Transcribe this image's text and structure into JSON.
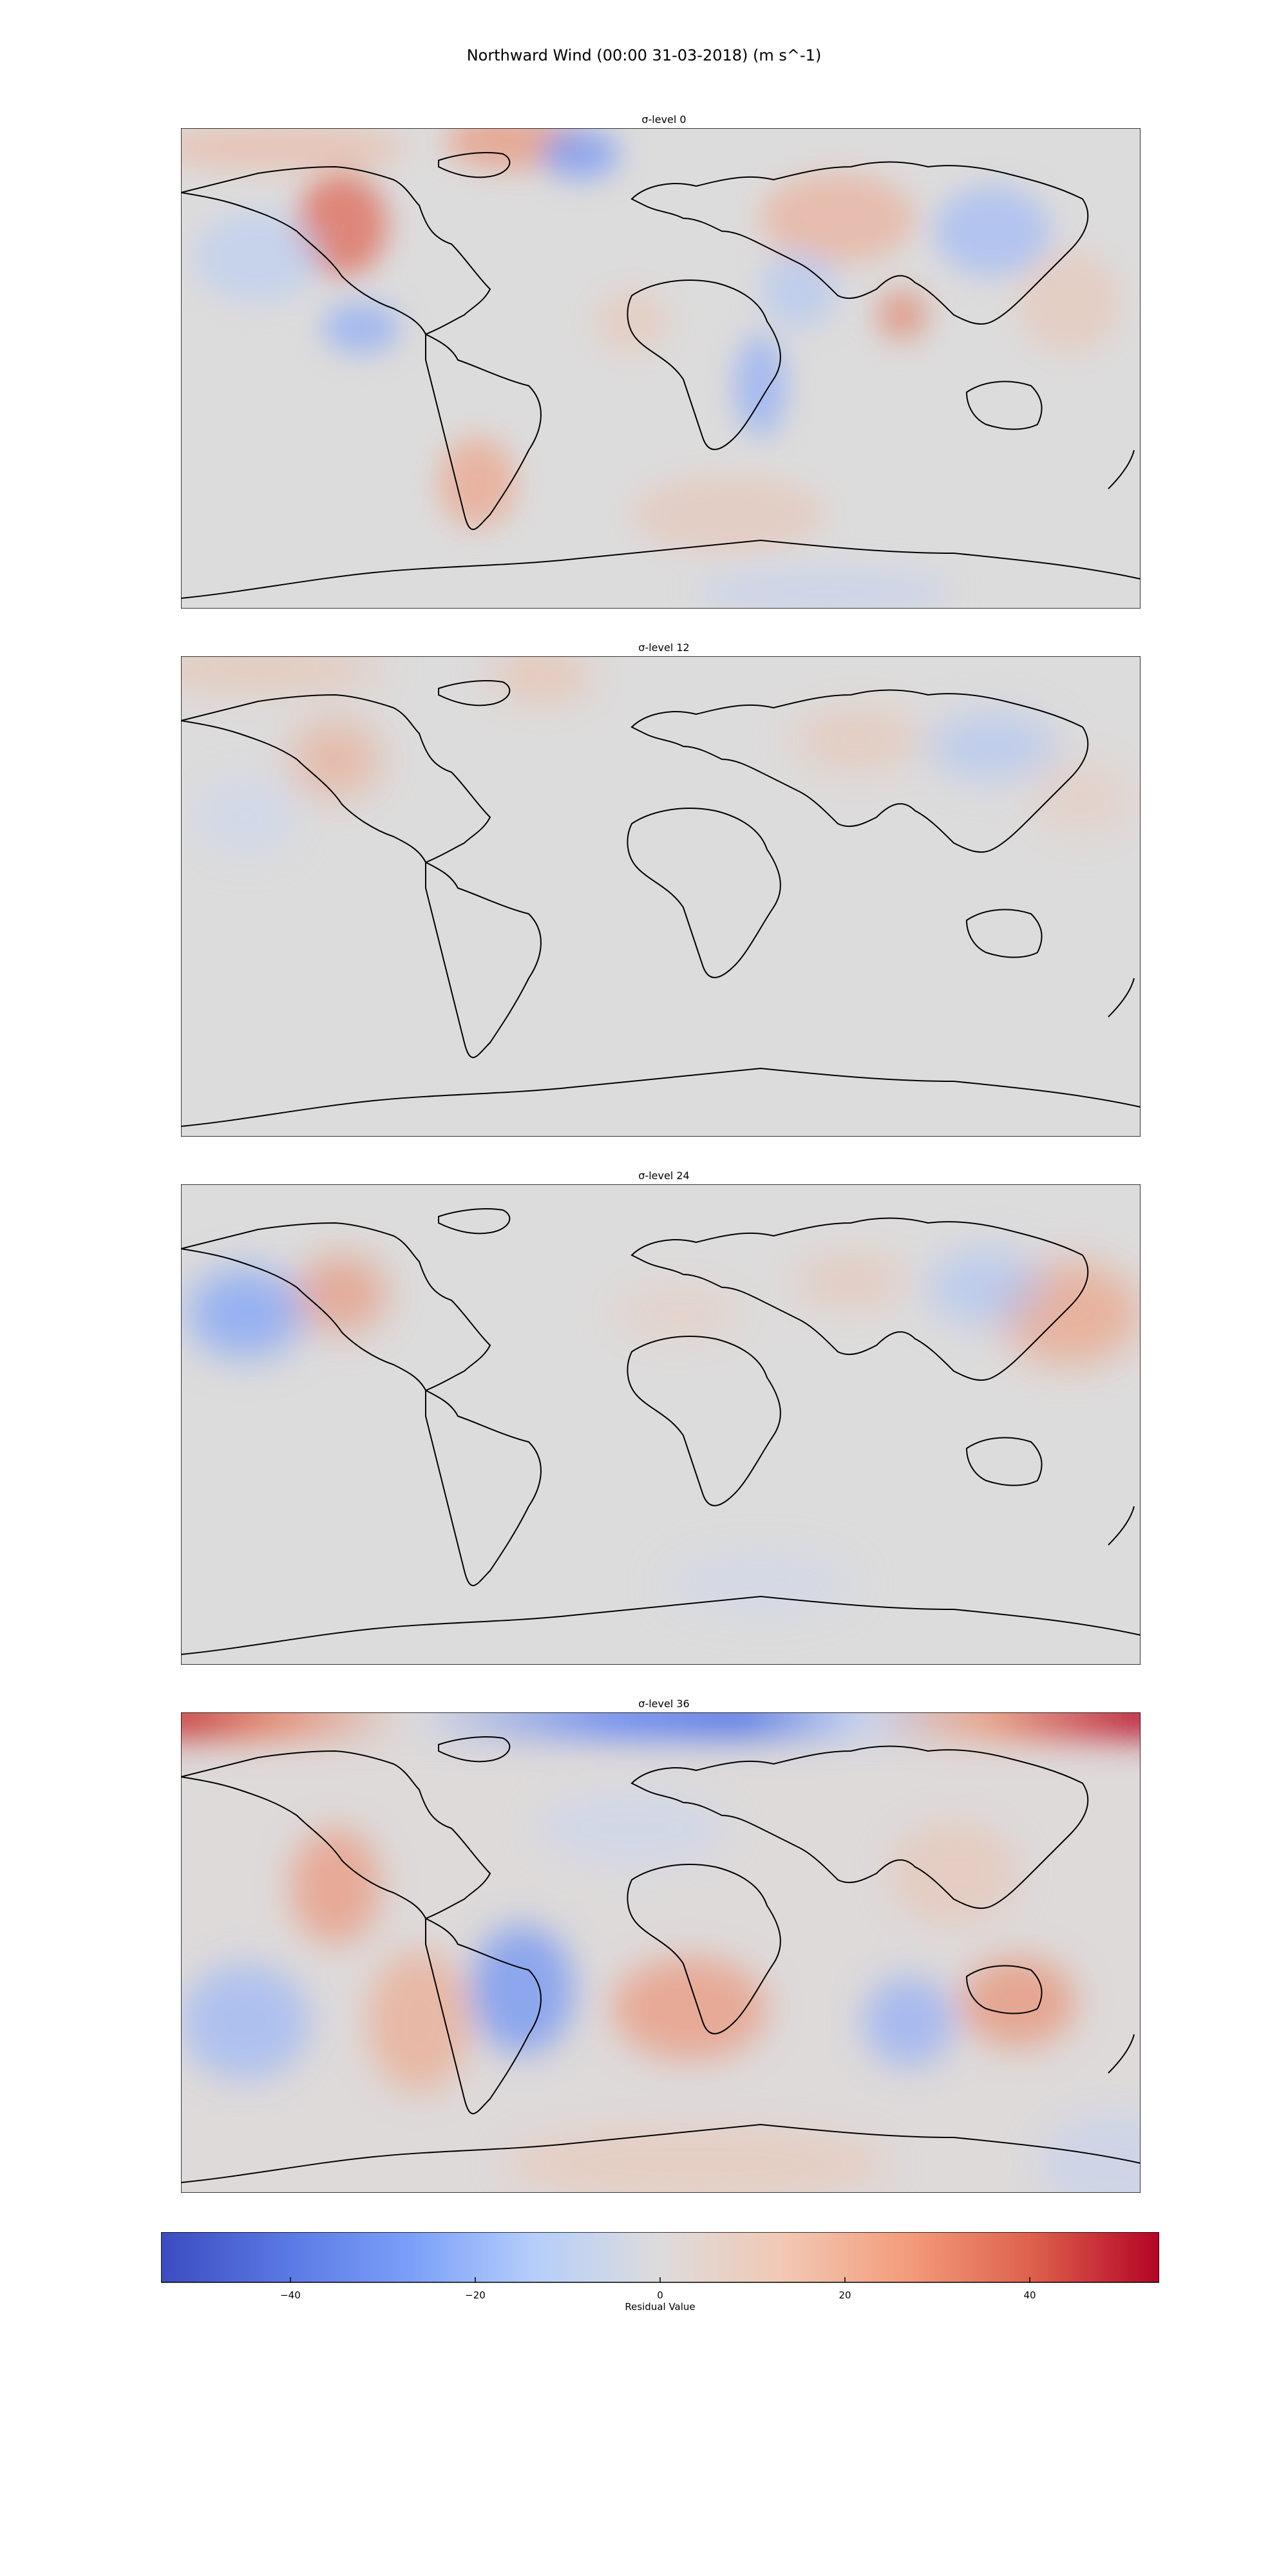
{
  "figure": {
    "title": "Northward Wind (00:00 31-03-2018) (m s^-1)"
  },
  "panels": [
    {
      "title": "σ-level 0",
      "level": 0
    },
    {
      "title": "σ-level 12",
      "level": 12
    },
    {
      "title": "σ-level 24",
      "level": 24
    },
    {
      "title": "σ-level 36",
      "level": 36
    }
  ],
  "colorbar": {
    "label": "Residual Value",
    "colormap": "coolwarm",
    "range": [
      -54,
      54
    ],
    "ticks": [
      -40,
      -20,
      0,
      20,
      40
    ],
    "tick_labels": [
      "−40",
      "−20",
      "0",
      "20",
      "40"
    ],
    "colors": {
      "low": "#3b4cc0",
      "mid": "#dddcdc",
      "high": "#b40426"
    }
  }
}
